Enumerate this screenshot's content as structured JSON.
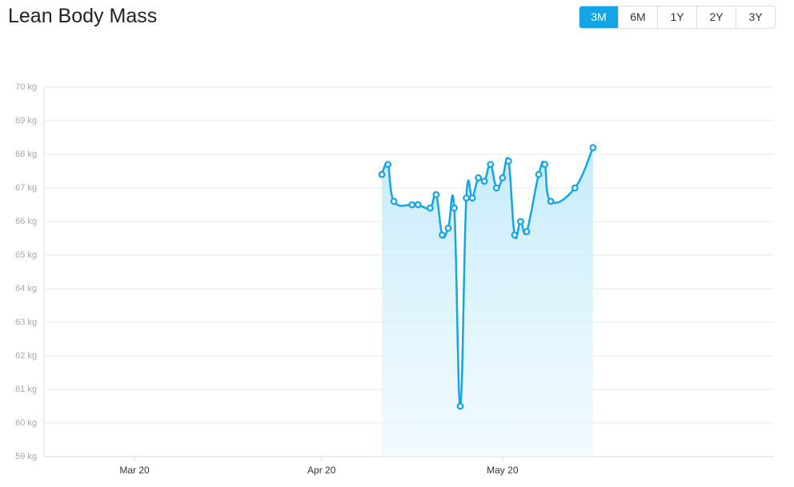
{
  "header": {
    "title": "Lean Body Mass",
    "buttons": [
      "3M",
      "6M",
      "1Y",
      "2Y",
      "3Y"
    ],
    "active": 0
  },
  "chart_data": {
    "type": "line",
    "x": [
      "Apr 30",
      "May 1",
      "May 2",
      "May 5",
      "May 6",
      "May 8",
      "May 9",
      "May 10",
      "May 11",
      "May 12",
      "May 13",
      "May 14",
      "May 15",
      "May 16",
      "May 17",
      "May 18",
      "May 19",
      "May 20",
      "May 21",
      "May 22",
      "May 23",
      "May 24",
      "May 26",
      "May 27",
      "May 28",
      "Jun 1",
      "Jun 4"
    ],
    "series": [
      {
        "color": "#14a5e6",
        "values": [
          67.4,
          67.7,
          66.6,
          66.5,
          66.5,
          66.4,
          66.8,
          65.6,
          65.8,
          66.4,
          60.5,
          66.7,
          66.7,
          67.3,
          67.2,
          67.7,
          67.0,
          67.3,
          67.8,
          65.6,
          66.0,
          65.7,
          67.4,
          67.7,
          66.6,
          67.0,
          68.2
        ]
      }
    ],
    "xlim": [
      "Mar 5",
      "Jul 4"
    ],
    "xticks": [
      "Mar 20",
      "Apr 20",
      "May 20"
    ],
    "ylim": [
      59,
      70
    ],
    "yticks": [
      {
        "value": 59,
        "label": "59 kg"
      },
      {
        "value": 60,
        "label": "60 kg"
      },
      {
        "value": 61,
        "label": "61 kg"
      },
      {
        "value": 62,
        "label": "62 kg"
      },
      {
        "value": 63,
        "label": "63 kg"
      },
      {
        "value": 64,
        "label": "64 kg"
      },
      {
        "value": 65,
        "label": "65 kg"
      },
      {
        "value": 66,
        "label": "66 kg"
      },
      {
        "value": 67,
        "label": "67 kg"
      },
      {
        "value": 68,
        "label": "68 kg"
      },
      {
        "value": 69,
        "label": "69 kg"
      },
      {
        "value": 70,
        "label": "70 kg"
      }
    ],
    "grid": true
  }
}
